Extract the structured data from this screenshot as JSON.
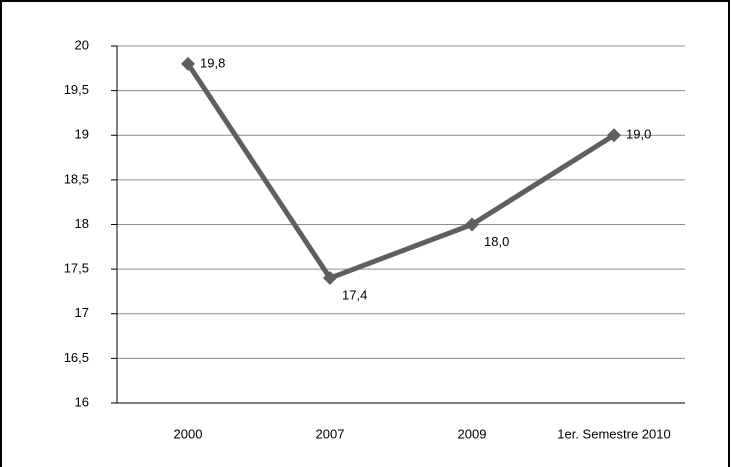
{
  "chart_data": {
    "type": "line",
    "categories": [
      "2000",
      "2007",
      "2009",
      "1er. Semestre 2010"
    ],
    "series": [
      {
        "color": "#5f5f5f",
        "values": [
          19.8,
          17.4,
          18.0,
          19.0
        ],
        "value_labels": [
          "19,8",
          "17,4",
          "18,0",
          "19,0"
        ]
      }
    ],
    "ylim": [
      16,
      20
    ],
    "yticks": [
      16,
      {
        "value": 16.5,
        "label": "16,5"
      },
      17,
      {
        "value": 17.5,
        "label": "17,5"
      },
      18,
      {
        "value": 18.5,
        "label": "18,5"
      },
      19,
      {
        "value": 19.5,
        "label": "19,5"
      },
      20
    ],
    "grid": true
  }
}
